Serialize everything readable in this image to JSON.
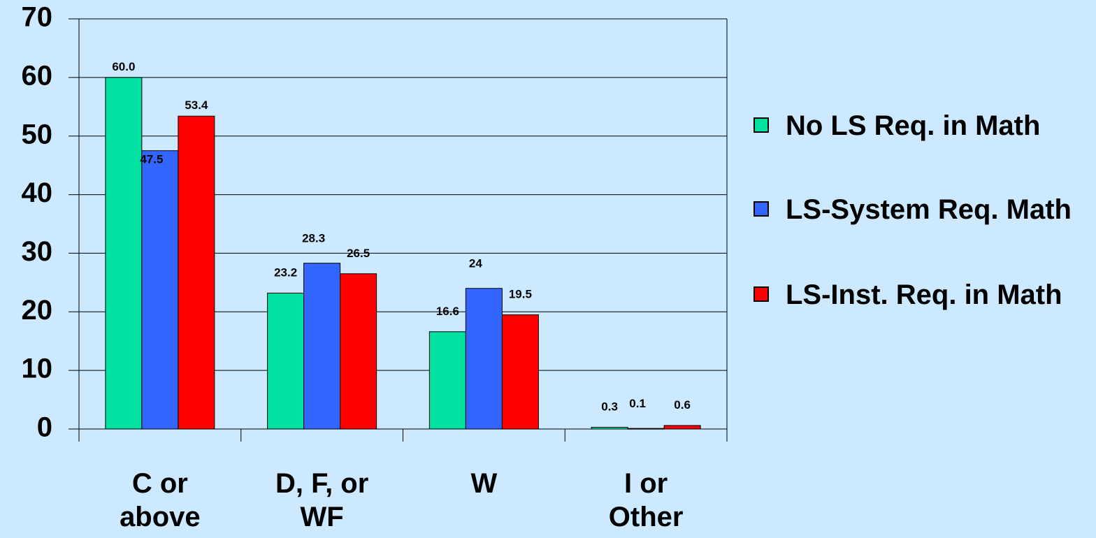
{
  "chart_data": {
    "type": "bar",
    "categories": [
      "C or above",
      "D, F, or WF",
      "W",
      "I or Other"
    ],
    "series": [
      {
        "name": "No LS Req. in Math",
        "color": "#00e0a0",
        "values": [
          60.0,
          23.2,
          16.6,
          0.3
        ],
        "value_labels": [
          "60.0",
          "23.2",
          "16.6",
          "0.3"
        ]
      },
      {
        "name": "LS-System Req. Math",
        "color": "#3366ff",
        "values": [
          47.5,
          28.3,
          24,
          0.1
        ],
        "value_labels": [
          "47.5",
          "28.3",
          "24",
          "0.1"
        ]
      },
      {
        "name": "LS-Inst. Req. in Math",
        "color": "#ff0000",
        "values": [
          53.4,
          26.5,
          19.5,
          0.6
        ],
        "value_labels": [
          "53.4",
          "26.5",
          "19.5",
          "0.6"
        ]
      }
    ],
    "ylim": [
      0,
      70
    ],
    "yticks": [
      0,
      10,
      20,
      30,
      40,
      50,
      60,
      70
    ],
    "grid": true,
    "legend": "right"
  }
}
